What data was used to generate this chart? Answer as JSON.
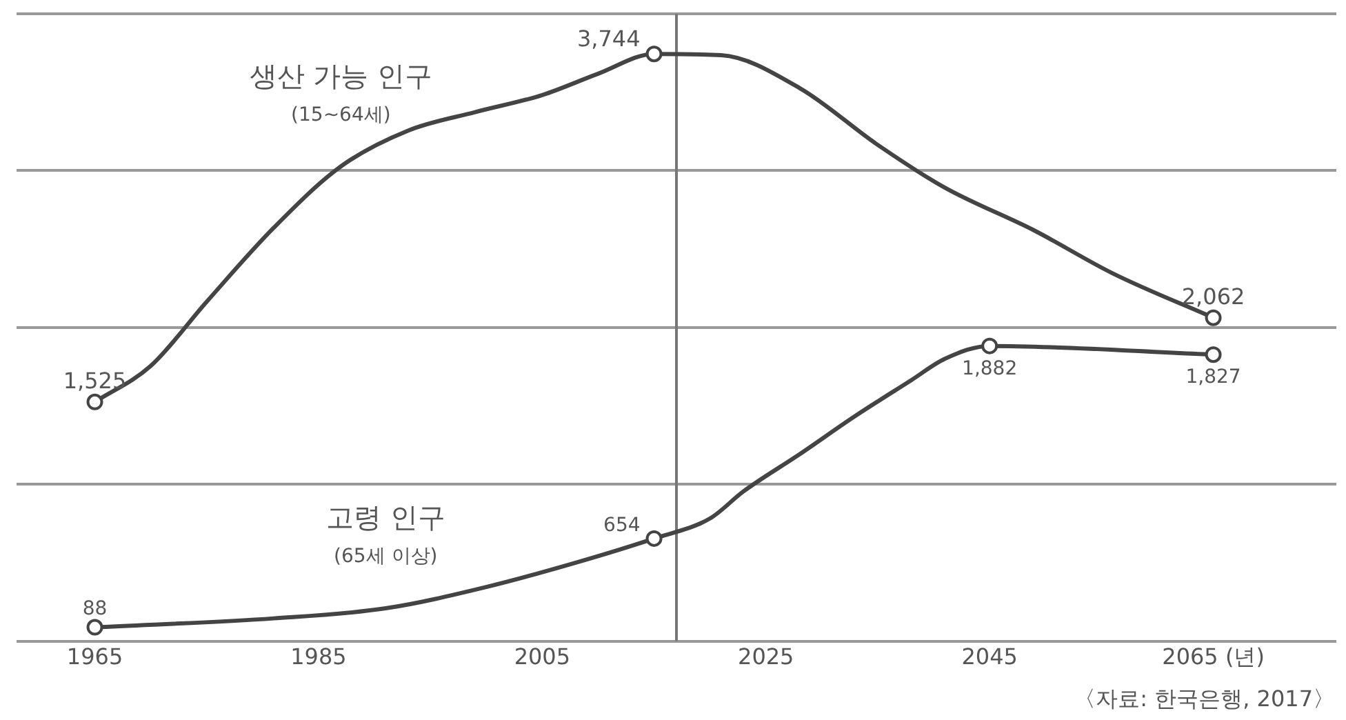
{
  "chart_data": {
    "type": "line",
    "series": [
      {
        "name": "생산 가능 인구\n(15~64세)",
        "color": "#444444",
        "x": [
          1965,
          1970,
          1975,
          1981,
          1987,
          1993,
          1999,
          2005,
          2010,
          2015,
          2021,
          2028,
          2035,
          2041,
          2049,
          2056,
          2065
        ],
        "values": [
          1525,
          1755,
          2164,
          2636,
          3027,
          3255,
          3373,
          3482,
          3618,
          3744,
          3736,
          3527,
          3164,
          2891,
          2618,
          2345,
          2062
        ],
        "value_labels": [
          "1,525",
          null,
          null,
          null,
          null,
          null,
          null,
          null,
          null,
          "3,744",
          null,
          null,
          null,
          null,
          null,
          null,
          "2,062"
        ]
      },
      {
        "name": "고령 인구\n(65세 이상)",
        "color": "#444444",
        "x": [
          1965,
          1981,
          1991,
          2000,
          2008,
          2015,
          2020,
          2023,
          2028,
          2033,
          2038,
          2041,
          2045,
          2065
        ],
        "values": [
          88,
          145,
          209,
          345,
          500,
          654,
          782,
          955,
          1191,
          1436,
          1664,
          1800,
          1882,
          1827
        ],
        "value_labels": [
          "88",
          null,
          null,
          null,
          null,
          "654",
          null,
          null,
          null,
          null,
          null,
          null,
          "1,882",
          "1,827"
        ]
      }
    ],
    "xlim": [
      1958,
      2076
    ],
    "xticks": [
      1965,
      1985,
      2005,
      2025,
      2045,
      {
        "value": 2065,
        "label": "2065 (년)"
      }
    ],
    "ylim": [
      0,
      4000
    ],
    "yticks": [
      0,
      {
        "value": 1000,
        "label": null
      },
      {
        "value": 2000,
        "label": null
      },
      {
        "value": 3000,
        "label": null
      },
      {
        "value": 4000,
        "label": null
      }
    ],
    "ref_lines": [
      {
        "axis": "x",
        "value": 2017,
        "color": "#777777"
      }
    ],
    "grid": "y",
    "legend": false,
    "tick_labels": "x",
    "line_style": "solid",
    "annotations": [
      "〈자료: 한국은행, 2017〉"
    ]
  }
}
